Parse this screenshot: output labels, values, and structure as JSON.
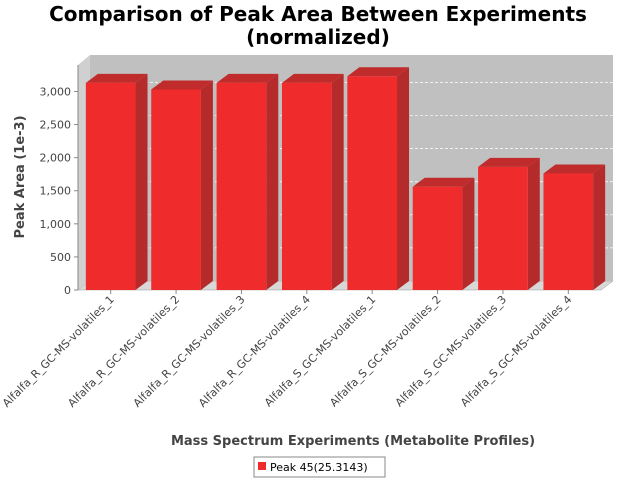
{
  "chart_data": {
    "type": "bar",
    "title_line1": "Comparison of Peak Area Between Experiments",
    "title_line2": "(normalized)",
    "xlabel": "Mass Spectrum Experiments (Metabolite Profiles)",
    "ylabel": "Peak Area (1e-3)",
    "ylim": [
      0,
      3400
    ],
    "yticks": [
      0,
      500,
      1000,
      1500,
      2000,
      2500,
      3000
    ],
    "ytick_labels": [
      "0",
      "500",
      "1,000",
      "1,500",
      "2,000",
      "2,500",
      "3,000"
    ],
    "categories": [
      "Alfalfa_R_GC-MS-volatiles_1",
      "Alfalfa_R_GC-MS-volatiles_2",
      "Alfalfa_R_GC-MS-volatiles_3",
      "Alfalfa_R_GC-MS-volatiles_4",
      "Alfalfa_S_GC-MS-volatiles_1",
      "Alfalfa_S_GC-MS-volatiles_2",
      "Alfalfa_S_GC-MS-volatiles_3",
      "Alfalfa_S_GC-MS-volatiles_4"
    ],
    "series": [
      {
        "name": "Peak 45(25.3143)",
        "color": "#f02b2b",
        "values": [
          3130,
          3030,
          3130,
          3130,
          3230,
          1560,
          1860,
          1760
        ]
      }
    ],
    "grid": true,
    "legend_position": "bottom"
  }
}
